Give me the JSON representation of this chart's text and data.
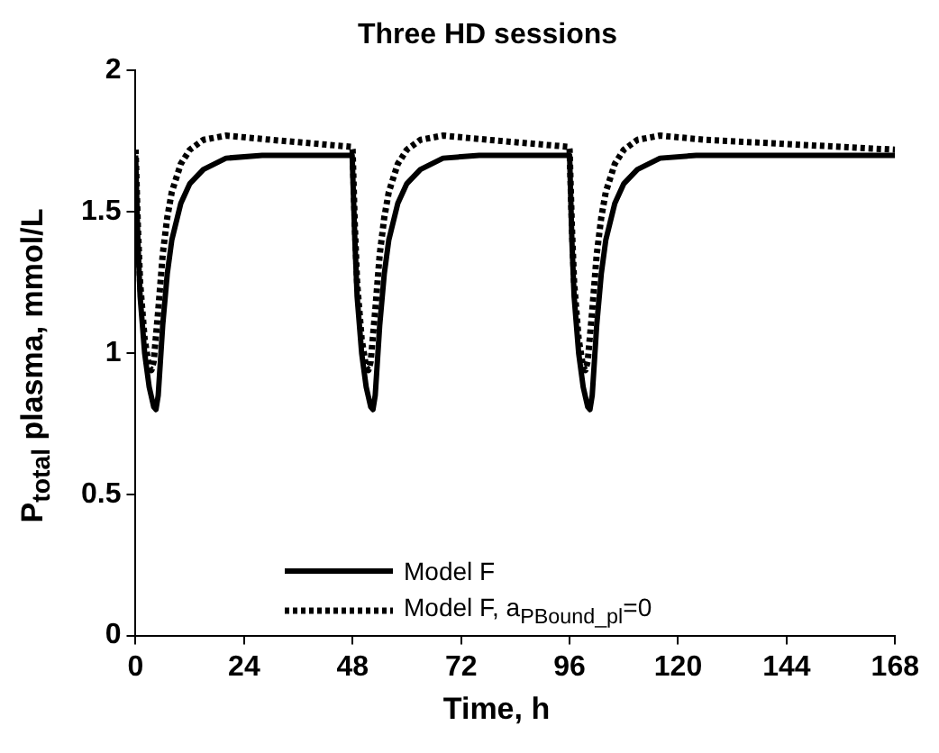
{
  "chart_data": {
    "type": "line",
    "title": "Three HD sessions",
    "xlabel": "Time, h",
    "ylabel": "P$_{total}$ plasma, mmol/L",
    "xlim": [
      0,
      168
    ],
    "xticks": [
      0,
      24,
      48,
      72,
      96,
      120,
      144,
      168
    ],
    "ylim": [
      0,
      2
    ],
    "yticks": [
      0,
      0.5,
      1,
      1.5,
      2
    ],
    "grid": false,
    "legend": "bottom",
    "marker": "none",
    "series": [
      {
        "name": "Model F",
        "color": "#000000",
        "line_style": "solid",
        "x": [
          0,
          0.5,
          1,
          2,
          3,
          4,
          4.5,
          5,
          6,
          7,
          8,
          10,
          12,
          15,
          20,
          28,
          47.9,
          48,
          48.5,
          49,
          50,
          51,
          52,
          52.5,
          53,
          54,
          55,
          56,
          58,
          60,
          63,
          68,
          76,
          95.9,
          96,
          96.5,
          97,
          98,
          99,
          100,
          100.5,
          101,
          102,
          103,
          104,
          106,
          108,
          111,
          116,
          124,
          168
        ],
        "values": [
          1.7,
          1.4,
          1.2,
          1.0,
          0.88,
          0.81,
          0.8,
          0.85,
          1.1,
          1.28,
          1.4,
          1.53,
          1.6,
          1.65,
          1.69,
          1.7,
          1.7,
          1.7,
          1.4,
          1.2,
          1.0,
          0.88,
          0.81,
          0.8,
          0.85,
          1.1,
          1.28,
          1.4,
          1.53,
          1.6,
          1.65,
          1.69,
          1.7,
          1.7,
          1.7,
          1.4,
          1.2,
          1.0,
          0.88,
          0.81,
          0.8,
          0.85,
          1.1,
          1.28,
          1.4,
          1.53,
          1.6,
          1.65,
          1.69,
          1.7,
          1.7
        ]
      },
      {
        "name": "Model F, a$_{PBound_pl}$=0",
        "color": "#000000",
        "line_style": "dotted",
        "x": [
          0,
          0.5,
          1,
          2,
          3,
          3.5,
          4,
          5,
          6,
          7,
          8,
          10,
          12,
          15,
          20,
          30,
          47.9,
          48,
          48.5,
          49,
          50,
          51,
          51.5,
          52,
          53,
          54,
          55,
          56,
          58,
          60,
          63,
          68,
          78,
          95.9,
          96,
          96.5,
          97,
          98,
          99,
          99.5,
          100,
          101,
          102,
          103,
          104,
          106,
          108,
          111,
          116,
          126,
          168
        ],
        "values": [
          1.72,
          1.45,
          1.25,
          1.05,
          0.95,
          0.94,
          0.97,
          1.15,
          1.35,
          1.48,
          1.57,
          1.67,
          1.72,
          1.755,
          1.77,
          1.755,
          1.73,
          1.72,
          1.45,
          1.25,
          1.05,
          0.95,
          0.94,
          0.97,
          1.15,
          1.35,
          1.48,
          1.57,
          1.67,
          1.72,
          1.755,
          1.77,
          1.755,
          1.73,
          1.72,
          1.45,
          1.25,
          1.05,
          0.95,
          0.94,
          0.97,
          1.15,
          1.35,
          1.48,
          1.57,
          1.67,
          1.72,
          1.755,
          1.77,
          1.755,
          1.72
        ]
      }
    ]
  }
}
